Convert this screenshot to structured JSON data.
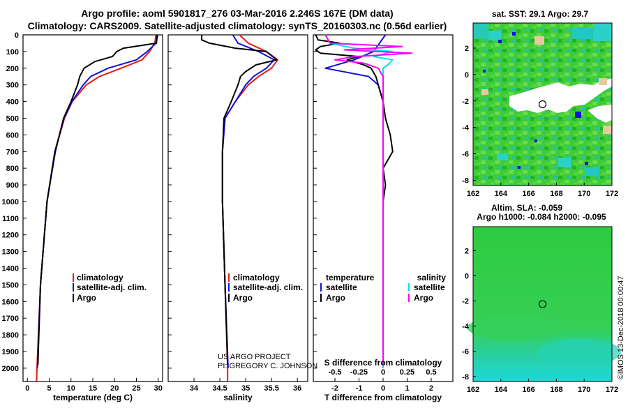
{
  "header": {
    "line1": "Argo profile: aoml 5901817_276 03-Mar-2016 2.246S 167E (DM data)",
    "line2": "Climatology: CARS2009. Satellite-adjusted climatology: synTS_20160303.nc (0.56d earlier)"
  },
  "colors": {
    "climatology": "#e41a1c",
    "satellite": "#1010e0",
    "argo": "#000000",
    "sat_salinity": "#00e5e5",
    "argo_salinity": "#ff00ff"
  },
  "depth_ticks": [
    "0",
    "100",
    "200",
    "300",
    "400",
    "500",
    "600",
    "700",
    "800",
    "900",
    "1000",
    "1100",
    "1200",
    "1300",
    "1400",
    "1500",
    "1600",
    "1700",
    "1800",
    "1900",
    "2000"
  ],
  "chart_data": [
    {
      "type": "line",
      "title": "",
      "xlabel": "temperature (deg C)",
      "ylabel": "depth",
      "xlim": [
        -1,
        31
      ],
      "ylim": [
        2080,
        0
      ],
      "xticks": [
        "0",
        "5",
        "10",
        "15",
        "20",
        "25",
        "30"
      ],
      "legend": [
        "climatology",
        "satellite-adj. clim.",
        "Argo"
      ],
      "series": [
        {
          "name": "climatology",
          "depth": [
            0,
            50,
            100,
            150,
            200,
            250,
            300,
            400,
            500,
            700,
            1000,
            1500,
            2000,
            2080
          ],
          "values": [
            29.5,
            29.2,
            28.0,
            26.3,
            21.5,
            16.5,
            13.5,
            10.3,
            8.5,
            6.3,
            4.5,
            3.0,
            2.2,
            2.1
          ]
        },
        {
          "name": "satellite-adj. clim.",
          "depth": [
            0,
            50,
            100,
            150,
            200,
            250,
            300,
            400,
            500,
            700,
            1000,
            1500,
            2000
          ],
          "values": [
            29.9,
            29.5,
            27.5,
            25.0,
            18.5,
            14.5,
            12.8,
            10.2,
            8.4,
            6.3,
            4.5,
            3.0,
            2.3
          ]
        },
        {
          "name": "Argo",
          "depth": [
            0,
            50,
            80,
            100,
            130,
            160,
            200,
            250,
            300,
            400,
            500,
            700,
            1000,
            1500,
            1980
          ],
          "values": [
            29.7,
            29.6,
            22.0,
            20.5,
            19.5,
            15.5,
            13.0,
            12.0,
            11.5,
            10.0,
            8.3,
            6.4,
            4.5,
            3.0,
            2.4
          ]
        }
      ]
    },
    {
      "type": "line",
      "title": "",
      "xlabel": "salinity",
      "ylabel": "",
      "xlim": [
        33.5,
        36.2
      ],
      "ylim": [
        2080,
        0
      ],
      "xticks": [
        "34",
        "34.5",
        "35",
        "35.5",
        "36"
      ],
      "legend": [
        "climatology",
        "satellite-adj. clim.",
        "Argo"
      ],
      "series": [
        {
          "name": "climatology",
          "depth": [
            0,
            50,
            100,
            150,
            200,
            250,
            300,
            400,
            500,
            700,
            1000,
            1500,
            2000,
            2080
          ],
          "values": [
            34.88,
            35.05,
            35.4,
            35.62,
            35.5,
            35.25,
            35.05,
            34.8,
            34.6,
            34.55,
            34.55,
            34.6,
            34.65,
            34.65
          ]
        },
        {
          "name": "satellite-adj. clim.",
          "depth": [
            0,
            50,
            100,
            150,
            200,
            250,
            300,
            400,
            500,
            700,
            1000,
            1500,
            2000
          ],
          "values": [
            34.75,
            34.85,
            35.25,
            35.55,
            35.4,
            35.15,
            35.0,
            34.8,
            34.6,
            34.55,
            34.55,
            34.6,
            34.66
          ]
        },
        {
          "name": "Argo",
          "depth": [
            0,
            30,
            50,
            80,
            100,
            150,
            180,
            220,
            250,
            300,
            400,
            500,
            700,
            1000,
            1500,
            1980
          ],
          "values": [
            34.15,
            34.15,
            34.3,
            34.8,
            35.4,
            35.6,
            35.2,
            35.0,
            34.9,
            34.85,
            34.72,
            34.58,
            34.55,
            34.55,
            34.6,
            34.65
          ]
        }
      ]
    },
    {
      "type": "line",
      "title": "",
      "xlabel": "T difference from climatology",
      "ylabel": "",
      "x2label": "S difference from climatology",
      "xlim": [
        -2.9,
        2.9
      ],
      "ylim": [
        2080,
        0
      ],
      "xticks": [
        "-2",
        "-1",
        "0",
        "1",
        "2"
      ],
      "x2ticks": [
        "-0.5",
        "-0.25",
        "0",
        "0.25",
        "0.5"
      ],
      "legend": [
        "temperature",
        "satellite",
        "Argo",
        "salinity",
        "satellite",
        "Argo"
      ],
      "series": [
        {
          "name": "temperature satellite",
          "depth": [
            0,
            100,
            150,
            200,
            250,
            300,
            400,
            500,
            700,
            1000,
            1500,
            2000
          ],
          "values": [
            0.1,
            -0.4,
            -1.2,
            -2.4,
            -0.6,
            -0.2,
            0,
            0,
            0,
            0,
            0,
            0
          ]
        },
        {
          "name": "temperature Argo",
          "depth": [
            0,
            30,
            50,
            70,
            90,
            110,
            130,
            150,
            180,
            200,
            250,
            300,
            400,
            500,
            600,
            700,
            800,
            900,
            1000,
            1500,
            1980
          ],
          "values": [
            -2.8,
            -2.7,
            -1.8,
            -2.6,
            -2.8,
            -2.6,
            -1.0,
            -1.5,
            -0.8,
            -0.5,
            -0.3,
            -0.2,
            0,
            0.1,
            0.3,
            0.4,
            0,
            0.1,
            0,
            0,
            0
          ]
        },
        {
          "name": "salinity satellite",
          "depth": [
            0,
            50,
            80,
            100,
            130,
            150,
            180,
            200,
            250,
            300,
            400,
            500,
            1000,
            1500,
            2000
          ],
          "values": [
            -0.6,
            -0.55,
            -0.3,
            0.1,
            -0.1,
            0.1,
            0.05,
            0,
            0,
            0,
            0,
            0,
            0,
            0,
            0
          ]
        },
        {
          "name": "salinity Argo",
          "depth": [
            0,
            50,
            70,
            90,
            110,
            130,
            150,
            170,
            200,
            250,
            300,
            400,
            500,
            1000,
            1500,
            1980
          ],
          "values": [
            -0.6,
            -0.55,
            0.2,
            -0.4,
            0.3,
            -0.3,
            -0.5,
            -0.2,
            -0.05,
            0,
            0,
            0,
            0,
            0,
            0,
            0
          ]
        }
      ]
    }
  ],
  "credit": {
    "line1": "US ARGO PROJECT",
    "line2": "PI: GREGORY C. JOHNSON"
  },
  "map_top": {
    "title": "sat. SST: 29.1  Argo: 29.7",
    "xticks": [
      "162",
      "164",
      "166",
      "168",
      "170",
      "172"
    ],
    "yticks": [
      "2",
      "0",
      "-2",
      "-4",
      "-6",
      "-8"
    ],
    "xlim": [
      162,
      172
    ],
    "ylim": [
      -8.4,
      3.9
    ],
    "marker": [
      167,
      -2.25
    ]
  },
  "map_bottom": {
    "title1": "Altim. SLA: -0.059",
    "title2": "Argo h1000: -0.084  h2000: -0.095",
    "xticks": [
      "162",
      "164",
      "166",
      "168",
      "170",
      "172"
    ],
    "yticks": [
      "2",
      "0",
      "-2",
      "-4",
      "-6",
      "-8"
    ],
    "xlim": [
      162,
      172
    ],
    "ylim": [
      -8.4,
      3.9
    ],
    "marker": [
      167,
      -2.25
    ]
  },
  "watermark": "©IMOS 13-Dec-2018 00:00:47"
}
